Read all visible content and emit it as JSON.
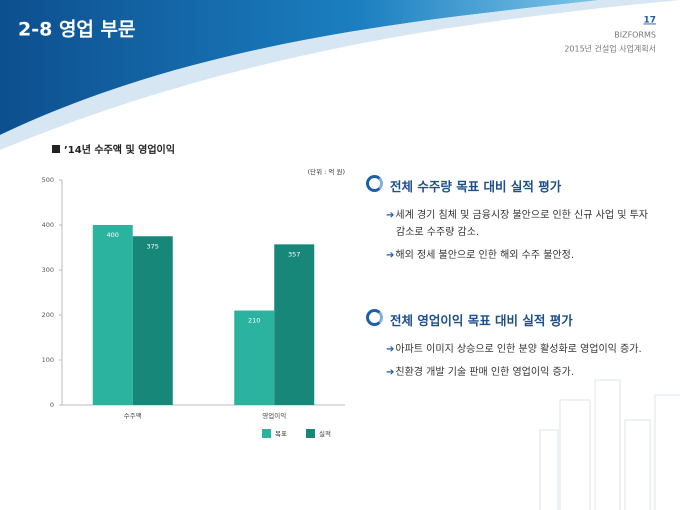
{
  "header": {
    "title": "2-8 영업 부문",
    "page": "17",
    "brand": "BIZFORMS",
    "doc": "2015년 건설업 사업계획서"
  },
  "chart_data": {
    "type": "bar",
    "title": "’14년 수주액 및 영업이익",
    "unit": "(단위 : 억 원)",
    "categories": [
      "수주액",
      "영업이익"
    ],
    "series": [
      {
        "name": "목표",
        "color": "#2bb3a0",
        "values": [
          400,
          210
        ]
      },
      {
        "name": "실적",
        "color": "#17877a",
        "values": [
          375,
          357
        ]
      }
    ],
    "ylim": [
      0,
      500
    ],
    "yticks": [
      0,
      100,
      200,
      300,
      400,
      500
    ],
    "grid": false
  },
  "sections": [
    {
      "heading": "전체 수주량 목표 대비 실적 평가",
      "items": [
        "세계 경기 침체 및 금융시장 불안으로 인한 신규 사업 및 투자 감소로 수주량 감소.",
        "해외 정세 불안으로 인한 해외 수주 불안정."
      ]
    },
    {
      "heading": "전체 영업이익 목표 대비 실적 평가",
      "items": [
        "아파트 이미지 상승으로 인한 분양 활성화로 영업이익 증가.",
        "친환경 개발 기술 판매 인한 영업이익 증가."
      ]
    }
  ]
}
